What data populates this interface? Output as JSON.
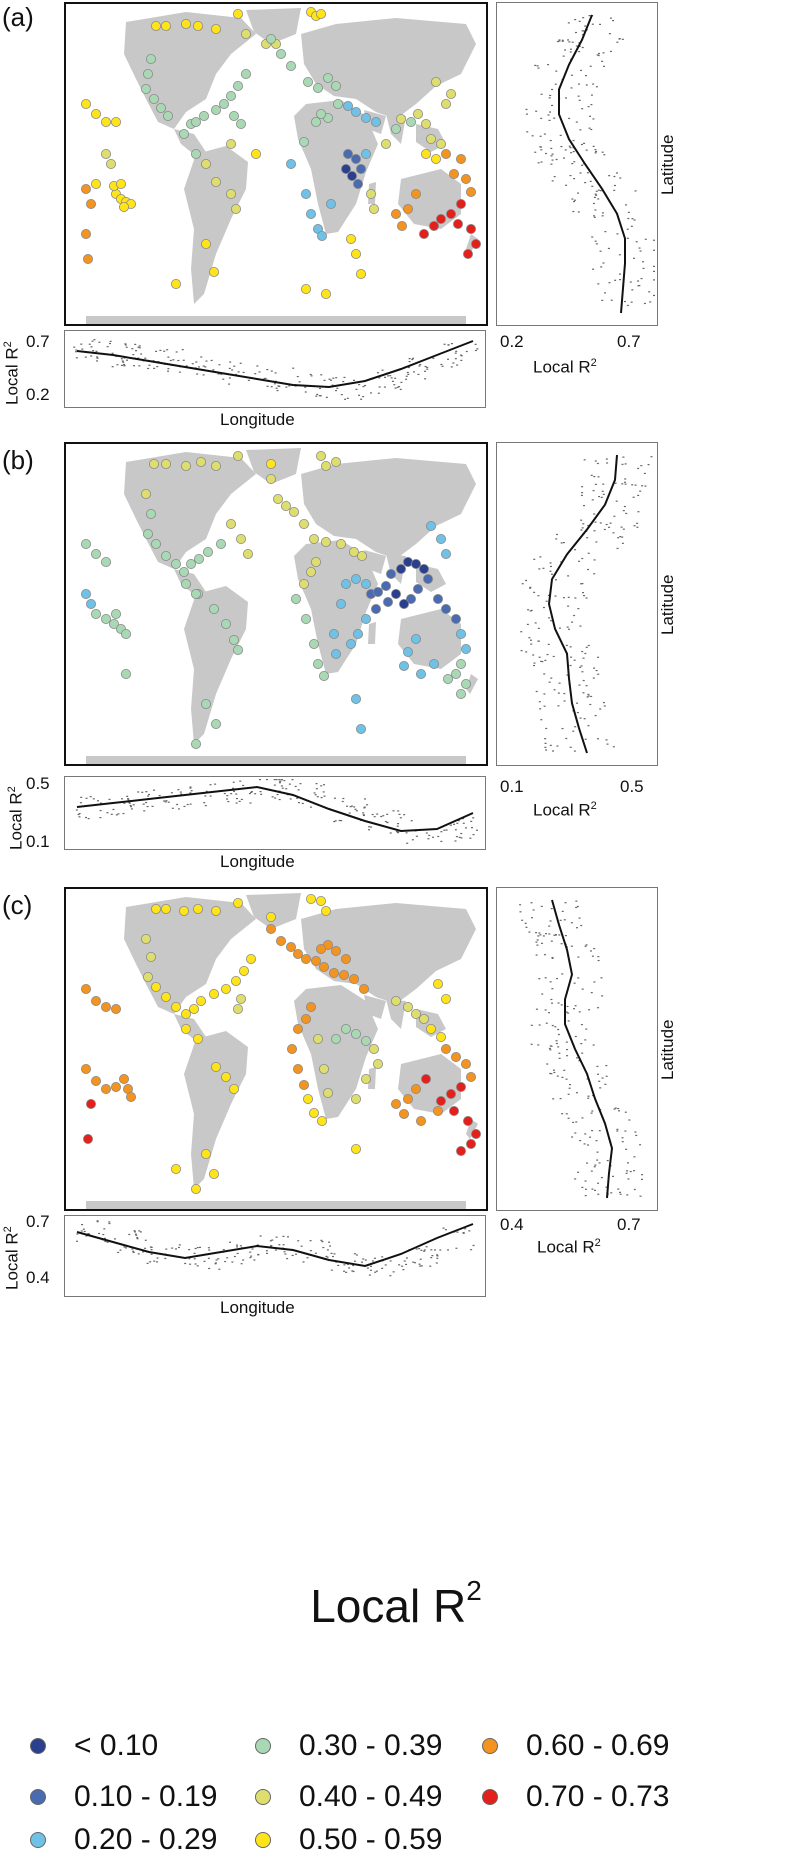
{
  "panels": [
    {
      "id": "a",
      "letter": "(a)",
      "side_ticks": [
        "0.2",
        "0.7"
      ],
      "bottom_ticks": [
        "0.7",
        "0.2"
      ]
    },
    {
      "id": "b",
      "letter": "(b)",
      "side_ticks": [
        "0.1",
        "0.5"
      ],
      "bottom_ticks": [
        "0.5",
        "0.1"
      ]
    },
    {
      "id": "c",
      "letter": "(c)",
      "side_ticks": [
        "0.4",
        "0.7"
      ],
      "bottom_ticks": [
        "0.7",
        "0.4"
      ]
    }
  ],
  "axis": {
    "latitude": "Latitude",
    "longitude": "Longitude",
    "local_r": "Local R",
    "sup": "2"
  },
  "legend": {
    "title": "Local R",
    "title_sup": "2",
    "items": [
      {
        "label": "< 0.10",
        "color": "#2b3f8f"
      },
      {
        "label": "0.10 - 0.19",
        "color": "#4a6bb0"
      },
      {
        "label": "0.20 - 0.29",
        "color": "#6fc1e6"
      },
      {
        "label": "0.30 - 0.39",
        "color": "#a8d8b4"
      },
      {
        "label": "0.40 - 0.49",
        "color": "#dede6e"
      },
      {
        "label": "0.50 - 0.59",
        "color": "#ffe41a"
      },
      {
        "label": "0.60 - 0.69",
        "color": "#f39320"
      },
      {
        "label": "0.70 - 0.73",
        "color": "#e3201b"
      }
    ]
  },
  "colors": {
    "land": "#c8c8c8",
    "point_stroke": "#888888",
    "curve": "#111111",
    "scatter": "#666666"
  }
}
